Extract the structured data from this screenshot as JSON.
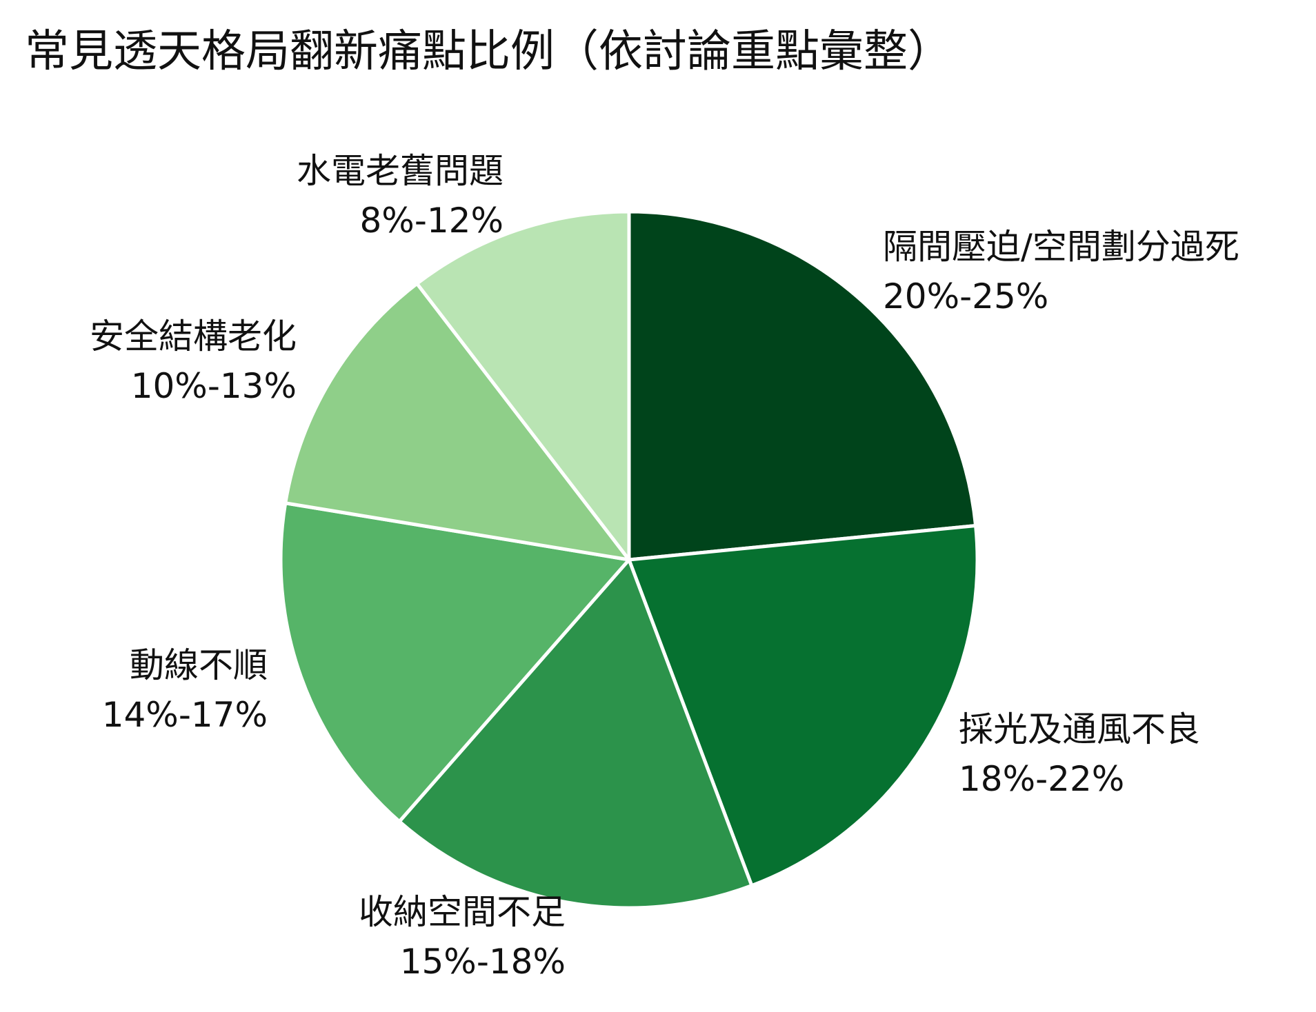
{
  "chart_data": {
    "type": "pie",
    "title": "常見透天格局翻新痛點比例（依討論重點彙整）",
    "start": "12 o'clock",
    "direction": "clockwise",
    "slices": [
      {
        "label": "隔間壓迫/空間劃分過死",
        "range": "20%-25%",
        "value": 22.5,
        "color": "#00441b"
      },
      {
        "label": "採光及通風不良",
        "range": "18%-22%",
        "value": 20.0,
        "color": "#067130"
      },
      {
        "label": "收納空間不足",
        "range": "15%-18%",
        "value": 16.5,
        "color": "#2c934b"
      },
      {
        "label": "動線不順",
        "range": "14%-17%",
        "value": 15.5,
        "color": "#56b468"
      },
      {
        "label": "安全結構老化",
        "range": "10%-13%",
        "value": 11.5,
        "color": "#8fcf89"
      },
      {
        "label": "水電老舊問題",
        "range": "8%-12%",
        "value": 10.0,
        "color": "#b9e4b3"
      }
    ]
  }
}
